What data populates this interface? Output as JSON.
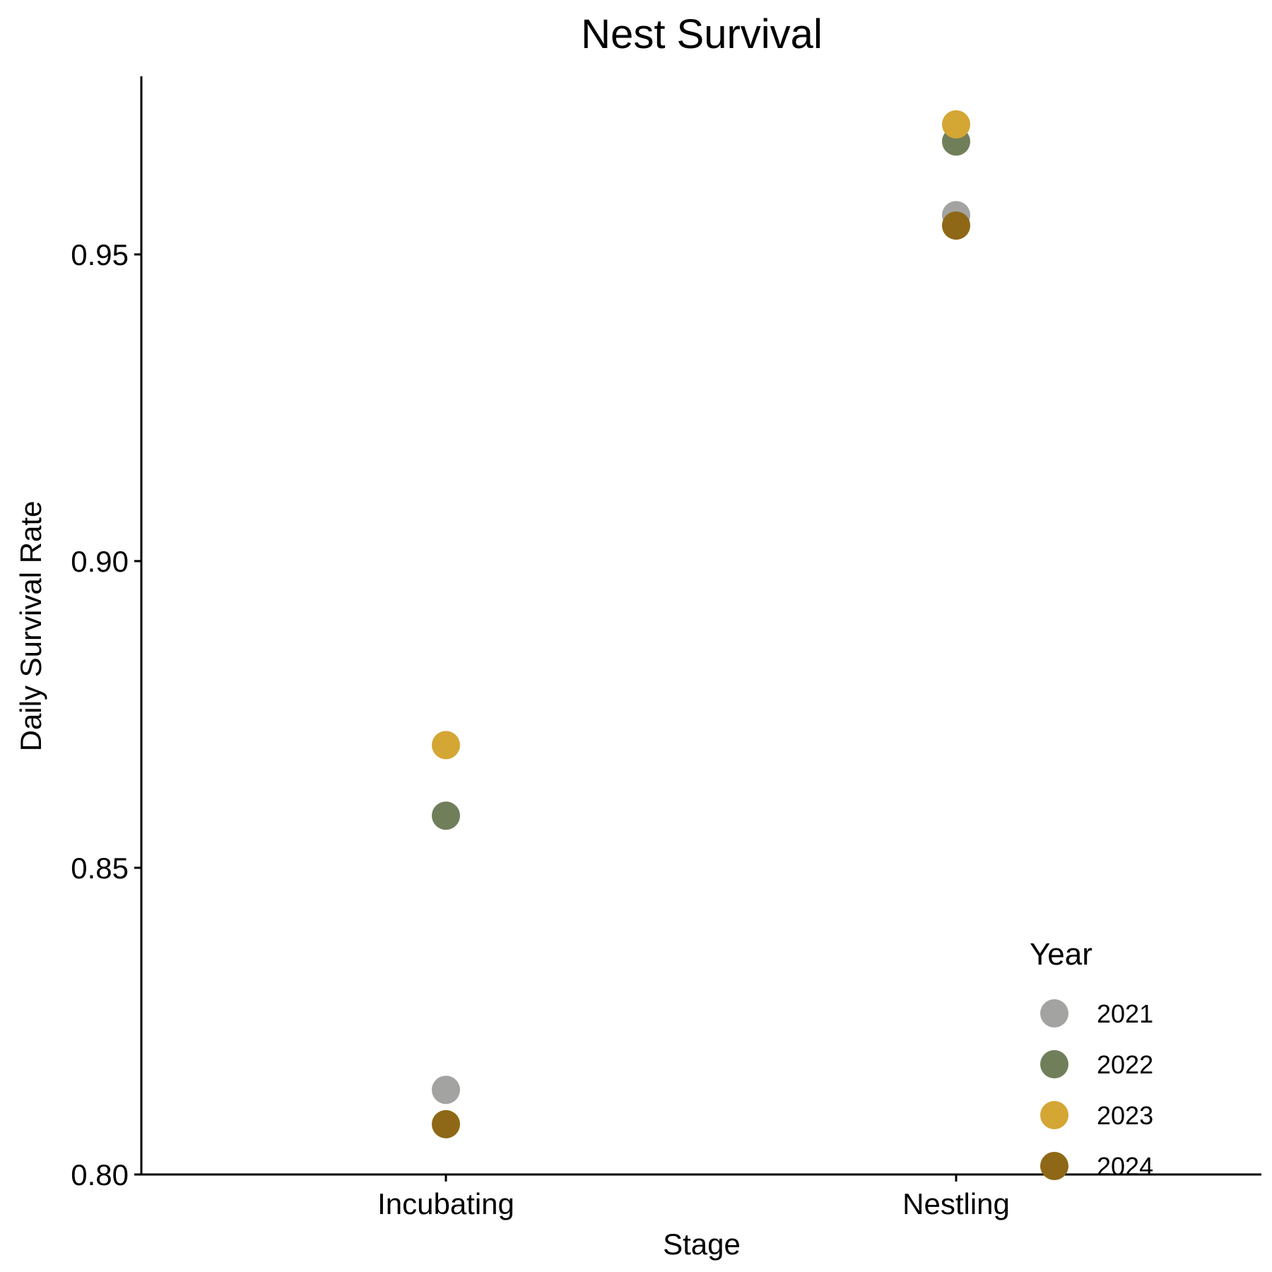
{
  "chart_data": {
    "type": "scatter",
    "title": "Nest Survival",
    "xlabel": "Stage",
    "ylabel": "Daily Survival Rate",
    "categories": [
      "Incubating",
      "Nestling"
    ],
    "ylim": [
      0.8,
      0.975
    ],
    "yticks": [
      0.8,
      0.85,
      0.9,
      0.95
    ],
    "ytick_labels": [
      "0.80",
      "0.85",
      "0.90",
      "0.95"
    ],
    "grid": false,
    "legend": {
      "title": "Year",
      "position": "bottom-right"
    },
    "series": [
      {
        "name": "2021",
        "color": "#a3a3a1",
        "values": [
          0.8138,
          0.9564
        ]
      },
      {
        "name": "2022",
        "color": "#707f5a",
        "values": [
          0.8585,
          0.9684
        ]
      },
      {
        "name": "2023",
        "color": "#d4a634",
        "values": [
          0.87,
          0.9712
        ]
      },
      {
        "name": "2024",
        "color": "#8e6816",
        "values": [
          0.8082,
          0.9547
        ]
      }
    ]
  }
}
